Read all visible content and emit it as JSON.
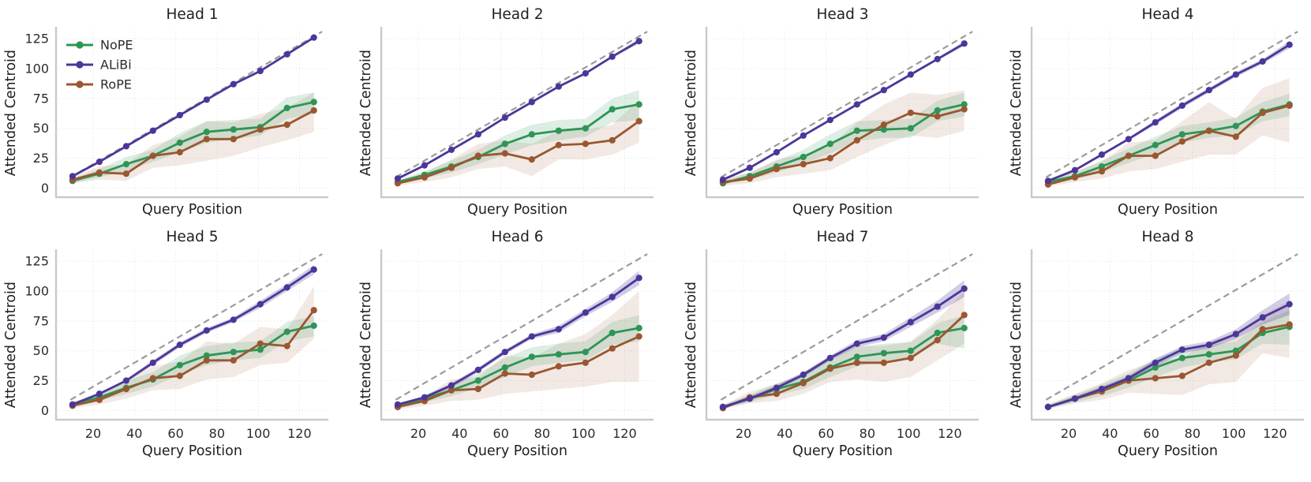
{
  "figure": {
    "ylabel": "Attended Centroid",
    "xlabel": "Query Position",
    "yticks": [
      0,
      25,
      50,
      75,
      100,
      125
    ],
    "xticks": [
      20,
      40,
      60,
      80,
      100,
      120
    ],
    "xlim": [
      2,
      134
    ],
    "ylim": [
      -7,
      133
    ],
    "grid": "on",
    "reference_line": {
      "meaning": "identity y = x",
      "style": "dashed",
      "color": "#9b9b9b",
      "from": 9,
      "to": 131
    },
    "series_meta": [
      {
        "name": "NoPE",
        "color": "#2e9556",
        "band_opacity": 0.16
      },
      {
        "name": "ALiBi",
        "color": "#4c3699",
        "band_opacity": 0.25
      },
      {
        "name": "RoPE",
        "color": "#9a5730",
        "band_opacity": 0.13
      }
    ],
    "legend": {
      "location": "upper left",
      "panel": "Head 1",
      "entries": [
        "NoPE",
        "ALiBi",
        "RoPE"
      ]
    }
  },
  "chart_data": [
    {
      "type": "line",
      "title": "Head 1",
      "legend": true,
      "x": [
        10,
        23,
        36,
        49,
        62,
        75,
        88,
        101,
        114,
        127
      ],
      "series": [
        {
          "name": "NoPE",
          "values": [
            6,
            12,
            20,
            27,
            38,
            47,
            49,
            51,
            67,
            72
          ],
          "lo": [
            4,
            9,
            14,
            22,
            30,
            38,
            41,
            44,
            58,
            62
          ],
          "hi": [
            8,
            16,
            26,
            32,
            46,
            56,
            57,
            58,
            76,
            80
          ]
        },
        {
          "name": "ALiBi",
          "values": [
            10,
            22,
            35,
            48,
            61,
            74,
            87,
            98,
            112,
            126
          ],
          "lo": [
            9,
            21,
            34,
            47,
            60,
            73,
            86,
            97,
            111,
            125
          ],
          "hi": [
            11,
            23,
            36,
            49,
            62,
            75,
            88,
            99,
            113,
            127
          ]
        },
        {
          "name": "RoPE",
          "values": [
            7,
            13,
            12,
            27,
            30,
            41,
            41,
            49,
            53,
            65
          ],
          "lo": [
            4,
            7,
            6,
            17,
            19,
            23,
            27,
            34,
            40,
            47
          ],
          "hi": [
            10,
            18,
            20,
            36,
            43,
            56,
            55,
            62,
            67,
            80
          ]
        }
      ]
    },
    {
      "type": "line",
      "title": "Head 2",
      "legend": false,
      "x": [
        10,
        23,
        36,
        49,
        62,
        75,
        88,
        101,
        114,
        127
      ],
      "series": [
        {
          "name": "NoPE",
          "values": [
            5,
            11,
            18,
            26,
            37,
            45,
            48,
            50,
            66,
            70
          ],
          "lo": [
            3,
            8,
            13,
            20,
            28,
            36,
            40,
            43,
            55,
            57
          ],
          "hi": [
            7,
            14,
            23,
            32,
            44,
            53,
            57,
            58,
            75,
            82
          ]
        },
        {
          "name": "ALiBi",
          "values": [
            8,
            19,
            32,
            45,
            59,
            72,
            85,
            96,
            110,
            123
          ],
          "lo": [
            7,
            18,
            31,
            44,
            58,
            71,
            84,
            95,
            109,
            121
          ],
          "hi": [
            9,
            20,
            33,
            46,
            60,
            73,
            86,
            97,
            111,
            125
          ]
        },
        {
          "name": "RoPE",
          "values": [
            4,
            9,
            17,
            27,
            29,
            24,
            36,
            37,
            40,
            56
          ],
          "lo": [
            2,
            5,
            9,
            16,
            18,
            10,
            24,
            24,
            28,
            38
          ],
          "hi": [
            6,
            13,
            24,
            37,
            40,
            37,
            48,
            49,
            53,
            74
          ]
        }
      ]
    },
    {
      "type": "line",
      "title": "Head 3",
      "legend": false,
      "x": [
        10,
        23,
        36,
        49,
        62,
        75,
        88,
        101,
        114,
        127
      ],
      "series": [
        {
          "name": "NoPE",
          "values": [
            4,
            10,
            18,
            26,
            37,
            48,
            49,
            50,
            65,
            70
          ],
          "lo": [
            3,
            7,
            13,
            20,
            29,
            39,
            42,
            42,
            56,
            60
          ],
          "hi": [
            6,
            13,
            23,
            32,
            45,
            56,
            57,
            58,
            73,
            80
          ]
        },
        {
          "name": "ALiBi",
          "values": [
            7,
            17,
            30,
            44,
            57,
            70,
            82,
            95,
            108,
            121
          ],
          "lo": [
            6,
            16,
            29,
            43,
            56,
            69,
            81,
            94,
            107,
            119
          ],
          "hi": [
            8,
            18,
            31,
            45,
            58,
            71,
            83,
            96,
            109,
            123
          ]
        },
        {
          "name": "RoPE",
          "values": [
            5,
            8,
            16,
            20,
            25,
            40,
            53,
            63,
            60,
            66
          ],
          "lo": [
            2,
            4,
            9,
            12,
            15,
            26,
            36,
            44,
            42,
            48
          ],
          "hi": [
            8,
            13,
            24,
            28,
            35,
            55,
            70,
            80,
            78,
            82
          ]
        }
      ]
    },
    {
      "type": "line",
      "title": "Head 4",
      "legend": false,
      "x": [
        10,
        23,
        36,
        49,
        62,
        75,
        88,
        101,
        114,
        127
      ],
      "series": [
        {
          "name": "NoPE",
          "values": [
            5,
            10,
            18,
            27,
            36,
            45,
            48,
            52,
            64,
            70
          ],
          "lo": [
            3,
            7,
            13,
            21,
            29,
            38,
            42,
            44,
            56,
            60
          ],
          "hi": [
            7,
            13,
            23,
            33,
            43,
            52,
            55,
            59,
            72,
            79
          ]
        },
        {
          "name": "ALiBi",
          "values": [
            6,
            15,
            28,
            41,
            55,
            69,
            82,
            95,
            106,
            120
          ],
          "lo": [
            5,
            14,
            27,
            40,
            53,
            67,
            80,
            93,
            104,
            117
          ],
          "hi": [
            7,
            16,
            29,
            42,
            57,
            71,
            84,
            97,
            108,
            123
          ]
        },
        {
          "name": "RoPE",
          "values": [
            3,
            9,
            14,
            27,
            27,
            39,
            48,
            43,
            63,
            69
          ],
          "lo": [
            1,
            5,
            8,
            14,
            16,
            22,
            28,
            28,
            44,
            38
          ],
          "hi": [
            6,
            14,
            22,
            38,
            40,
            56,
            72,
            58,
            84,
            92
          ]
        }
      ]
    },
    {
      "type": "line",
      "title": "Head 5",
      "legend": false,
      "x": [
        10,
        23,
        36,
        49,
        62,
        75,
        88,
        101,
        114,
        127
      ],
      "series": [
        {
          "name": "NoPE",
          "values": [
            5,
            11,
            19,
            26,
            38,
            46,
            49,
            51,
            66,
            71
          ],
          "lo": [
            3,
            8,
            14,
            20,
            30,
            38,
            42,
            44,
            58,
            62
          ],
          "hi": [
            7,
            15,
            25,
            32,
            46,
            54,
            57,
            58,
            74,
            79
          ]
        },
        {
          "name": "ALiBi",
          "values": [
            5,
            14,
            25,
            40,
            55,
            67,
            76,
            89,
            103,
            118
          ],
          "lo": [
            4,
            13,
            24,
            38,
            53,
            65,
            74,
            86,
            100,
            114
          ],
          "hi": [
            6,
            15,
            26,
            42,
            57,
            69,
            78,
            92,
            106,
            122
          ]
        },
        {
          "name": "RoPE",
          "values": [
            4,
            9,
            18,
            27,
            29,
            42,
            42,
            56,
            54,
            84
          ],
          "lo": [
            2,
            5,
            10,
            17,
            18,
            26,
            28,
            38,
            40,
            60
          ],
          "hi": [
            7,
            14,
            26,
            37,
            41,
            58,
            56,
            70,
            68,
            104
          ]
        }
      ]
    },
    {
      "type": "line",
      "title": "Head 6",
      "legend": false,
      "x": [
        10,
        23,
        36,
        49,
        62,
        75,
        88,
        101,
        114,
        127
      ],
      "series": [
        {
          "name": "NoPE",
          "values": [
            3,
            10,
            17,
            25,
            36,
            45,
            47,
            49,
            65,
            69
          ],
          "lo": [
            2,
            7,
            12,
            19,
            28,
            37,
            40,
            42,
            55,
            58
          ],
          "hi": [
            5,
            13,
            22,
            31,
            44,
            53,
            56,
            58,
            74,
            80
          ]
        },
        {
          "name": "ALiBi",
          "values": [
            5,
            11,
            21,
            34,
            49,
            62,
            68,
            82,
            95,
            111
          ],
          "lo": [
            4,
            10,
            19,
            32,
            47,
            60,
            65,
            79,
            91,
            105
          ],
          "hi": [
            6,
            12,
            23,
            36,
            51,
            64,
            71,
            85,
            99,
            117
          ]
        },
        {
          "name": "RoPE",
          "values": [
            3,
            8,
            17,
            18,
            31,
            30,
            37,
            40,
            52,
            62
          ],
          "lo": [
            1,
            4,
            8,
            9,
            14,
            16,
            18,
            20,
            24,
            24
          ],
          "hi": [
            5,
            12,
            26,
            28,
            46,
            44,
            56,
            64,
            80,
            100
          ]
        }
      ]
    },
    {
      "type": "line",
      "title": "Head 7",
      "legend": false,
      "x": [
        10,
        23,
        36,
        49,
        62,
        75,
        88,
        101,
        114,
        127
      ],
      "series": [
        {
          "name": "NoPE",
          "values": [
            3,
            10,
            18,
            24,
            36,
            45,
            48,
            50,
            65,
            69
          ],
          "lo": [
            2,
            7,
            13,
            18,
            28,
            37,
            41,
            44,
            56,
            52
          ],
          "hi": [
            5,
            13,
            23,
            30,
            43,
            53,
            56,
            57,
            73,
            80
          ]
        },
        {
          "name": "ALiBi",
          "values": [
            3,
            10,
            19,
            30,
            44,
            56,
            61,
            74,
            87,
            102
          ],
          "lo": [
            2,
            8,
            17,
            28,
            42,
            53,
            58,
            70,
            82,
            95
          ],
          "hi": [
            4,
            12,
            21,
            32,
            46,
            59,
            64,
            78,
            92,
            109
          ]
        },
        {
          "name": "RoPE",
          "values": [
            2,
            11,
            14,
            23,
            35,
            40,
            40,
            44,
            59,
            80
          ],
          "lo": [
            1,
            6,
            8,
            14,
            24,
            26,
            24,
            28,
            42,
            56
          ],
          "hi": [
            4,
            16,
            22,
            32,
            46,
            54,
            54,
            58,
            76,
            100
          ]
        }
      ]
    },
    {
      "type": "line",
      "title": "Head 8",
      "legend": false,
      "x": [
        10,
        23,
        36,
        49,
        62,
        75,
        88,
        101,
        114,
        127
      ],
      "series": [
        {
          "name": "NoPE",
          "values": [
            3,
            10,
            17,
            25,
            36,
            44,
            47,
            50,
            65,
            70
          ],
          "lo": [
            2,
            7,
            12,
            19,
            28,
            36,
            40,
            43,
            56,
            55
          ],
          "hi": [
            5,
            13,
            22,
            31,
            44,
            52,
            55,
            58,
            74,
            84
          ]
        },
        {
          "name": "ALiBi",
          "values": [
            3,
            10,
            18,
            27,
            40,
            51,
            55,
            64,
            78,
            89
          ],
          "lo": [
            2,
            8,
            16,
            25,
            37,
            48,
            52,
            60,
            72,
            80
          ],
          "hi": [
            4,
            12,
            20,
            29,
            43,
            54,
            58,
            68,
            84,
            98
          ]
        },
        {
          "name": "RoPE",
          "values": [
            3,
            10,
            16,
            25,
            27,
            29,
            40,
            46,
            68,
            72
          ],
          "lo": [
            1,
            6,
            9,
            15,
            14,
            13,
            22,
            24,
            48,
            44
          ],
          "hi": [
            5,
            14,
            23,
            34,
            41,
            44,
            58,
            64,
            80,
            92
          ]
        }
      ]
    }
  ]
}
